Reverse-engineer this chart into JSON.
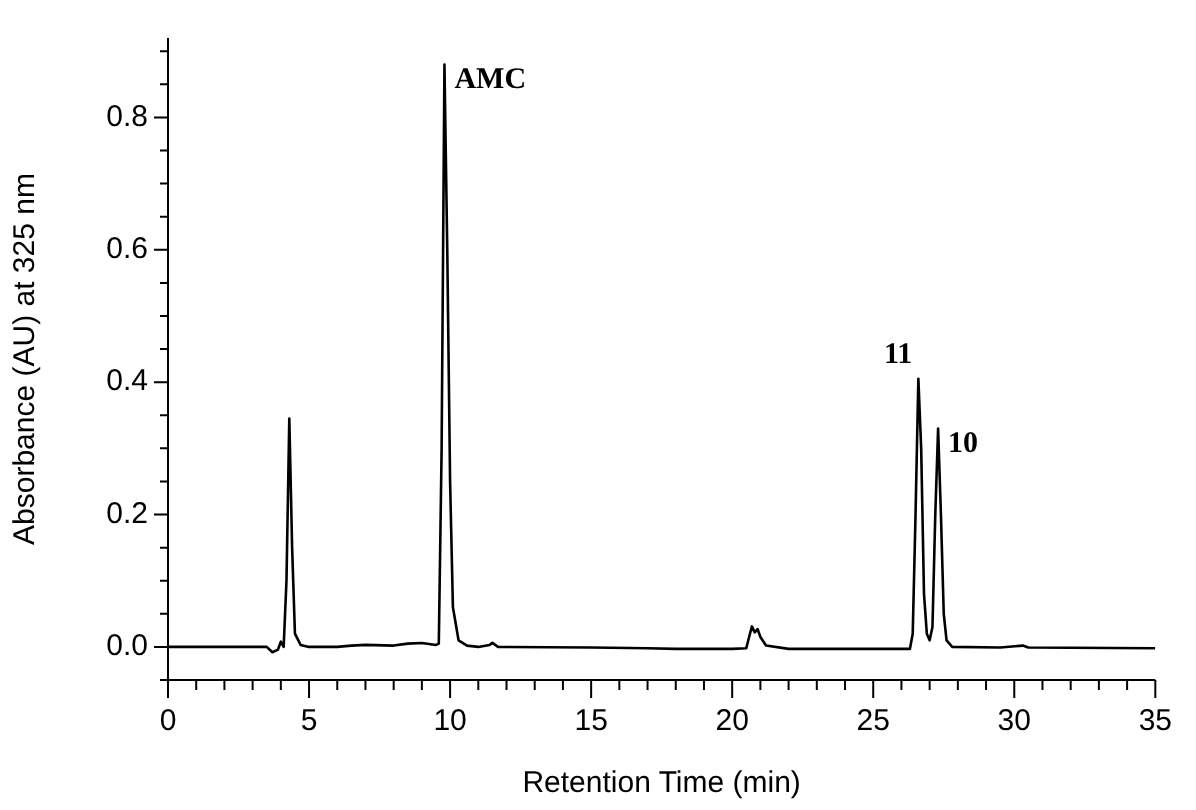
{
  "chart_data": {
    "type": "line",
    "xlabel": "Retention Time (min)",
    "ylabel": "Absorbance (AU) at 325 nm",
    "series": [
      {
        "color": "#000000",
        "x": [
          0,
          3.5,
          3.7,
          3.9,
          4.0,
          4.1,
          4.2,
          4.3,
          4.4,
          4.5,
          4.7,
          5,
          6,
          6.5,
          7,
          8,
          8.5,
          9,
          9.5,
          9.6,
          9.7,
          9.8,
          9.9,
          10.0,
          10.1,
          10.3,
          10.6,
          11,
          11.4,
          11.5,
          11.7,
          15,
          17,
          18,
          20,
          20.5,
          20.6,
          20.7,
          20.8,
          20.9,
          21.0,
          21.2,
          22,
          26.3,
          26.4,
          26.5,
          26.6,
          26.7,
          26.8,
          26.9,
          27.0,
          27.1,
          27.2,
          27.3,
          27.4,
          27.5,
          27.6,
          27.8,
          29.5,
          30.3,
          30.5,
          35
        ],
        "values": [
          0,
          0,
          -0.008,
          -0.004,
          0.008,
          0.0,
          0.1,
          0.345,
          0.15,
          0.02,
          0.003,
          0,
          0,
          0.002,
          0.003,
          0.002,
          0.005,
          0.006,
          0.003,
          0.005,
          0.3,
          0.88,
          0.6,
          0.25,
          0.06,
          0.01,
          0.002,
          0,
          0.003,
          0.006,
          0,
          -0.001,
          -0.002,
          -0.003,
          -0.003,
          -0.002,
          0.015,
          0.031,
          0.022,
          0.027,
          0.015,
          0.002,
          -0.003,
          -0.003,
          0.02,
          0.2,
          0.405,
          0.3,
          0.08,
          0.02,
          0.01,
          0.03,
          0.2,
          0.33,
          0.2,
          0.05,
          0.01,
          0,
          -0.001,
          0.002,
          -0.001,
          -0.002
        ]
      }
    ],
    "xlim": [
      0,
      35
    ],
    "xticks": [
      0,
      {
        "value": 1,
        "label": null
      },
      {
        "value": 2,
        "label": null
      },
      {
        "value": 3,
        "label": null
      },
      {
        "value": 4,
        "label": null
      },
      5,
      {
        "value": 6,
        "label": null
      },
      {
        "value": 7,
        "label": null
      },
      {
        "value": 8,
        "label": null
      },
      {
        "value": 9,
        "label": null
      },
      10,
      {
        "value": 11,
        "label": null
      },
      {
        "value": 12,
        "label": null
      },
      {
        "value": 13,
        "label": null
      },
      {
        "value": 14,
        "label": null
      },
      15,
      {
        "value": 16,
        "label": null
      },
      {
        "value": 17,
        "label": null
      },
      {
        "value": 18,
        "label": null
      },
      {
        "value": 19,
        "label": null
      },
      20,
      {
        "value": 21,
        "label": null
      },
      {
        "value": 22,
        "label": null
      },
      {
        "value": 23,
        "label": null
      },
      {
        "value": 24,
        "label": null
      },
      25,
      {
        "value": 26,
        "label": null
      },
      {
        "value": 27,
        "label": null
      },
      {
        "value": 28,
        "label": null
      },
      {
        "value": 29,
        "label": null
      },
      30,
      {
        "value": 31,
        "label": null
      },
      {
        "value": 32,
        "label": null
      },
      {
        "value": 33,
        "label": null
      },
      {
        "value": 34,
        "label": null
      },
      35
    ],
    "ylim": [
      -0.05,
      0.92
    ],
    "yticks": [
      {
        "value": -0.05,
        "label": null
      },
      {
        "value": 0,
        "label": "0.0"
      },
      {
        "value": 0.05,
        "label": null
      },
      {
        "value": 0.1,
        "label": null
      },
      {
        "value": 0.15,
        "label": null
      },
      {
        "value": 0.2,
        "label": "0.2"
      },
      {
        "value": 0.25,
        "label": null
      },
      {
        "value": 0.3,
        "label": null
      },
      {
        "value": 0.35,
        "label": null
      },
      {
        "value": 0.4,
        "label": "0.4"
      },
      {
        "value": 0.45,
        "label": null
      },
      {
        "value": 0.5,
        "label": null
      },
      {
        "value": 0.55,
        "label": null
      },
      {
        "value": 0.6,
        "label": "0.6"
      },
      {
        "value": 0.65,
        "label": null
      },
      {
        "value": 0.7,
        "label": null
      },
      {
        "value": 0.75,
        "label": null
      },
      {
        "value": 0.8,
        "label": "0.8"
      },
      {
        "value": 0.85,
        "label": null
      },
      {
        "value": 0.9,
        "label": null
      }
    ],
    "annotations": [
      {
        "text": "AMC",
        "x": 9.8,
        "y": 0.88
      },
      {
        "text": "11",
        "x": 26.6,
        "y": 0.405
      },
      {
        "text": "10",
        "x": 27.3,
        "y": 0.33
      }
    ],
    "grid": false,
    "legend": false,
    "marker": "none",
    "line_style": "solid"
  }
}
